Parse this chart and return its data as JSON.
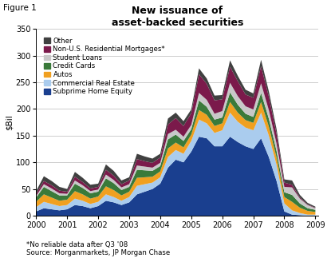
{
  "title": "New issuance of\nasset-backed securities",
  "figure_label": "Figure 1",
  "ylabel": "$Bil",
  "footnote": "*No reliable data after Q3 '08\nSource: Morganmarkets, JP Morgan Chase",
  "ylim": [
    0,
    350
  ],
  "yticks": [
    0,
    50,
    100,
    150,
    200,
    250,
    300,
    350
  ],
  "years": [
    2000.0,
    2000.25,
    2000.5,
    2000.75,
    2001.0,
    2001.25,
    2001.5,
    2001.75,
    2002.0,
    2002.25,
    2002.5,
    2002.75,
    2003.0,
    2003.25,
    2003.5,
    2003.75,
    2004.0,
    2004.25,
    2004.5,
    2004.75,
    2005.0,
    2005.25,
    2005.5,
    2005.75,
    2006.0,
    2006.25,
    2006.5,
    2006.75,
    2007.0,
    2007.25,
    2007.5,
    2007.75,
    2008.0,
    2008.25,
    2008.5,
    2008.75,
    2009.0
  ],
  "series": {
    "Subprime Home Equity": {
      "color": "#1a3f8f",
      "values": [
        8,
        14,
        12,
        10,
        12,
        20,
        18,
        14,
        18,
        28,
        25,
        20,
        25,
        40,
        45,
        50,
        60,
        90,
        105,
        100,
        120,
        148,
        145,
        130,
        130,
        148,
        138,
        130,
        125,
        145,
        110,
        65,
        8,
        2,
        1,
        0,
        0
      ]
    },
    "Commercial Real Estate": {
      "color": "#aaccee",
      "values": [
        8,
        12,
        10,
        8,
        8,
        12,
        10,
        8,
        8,
        12,
        10,
        8,
        10,
        16,
        14,
        12,
        12,
        20,
        18,
        16,
        20,
        32,
        28,
        25,
        30,
        45,
        38,
        35,
        35,
        48,
        40,
        30,
        15,
        8,
        4,
        2,
        2
      ]
    },
    "Autos": {
      "color": "#f0a020",
      "values": [
        10,
        14,
        12,
        10,
        10,
        14,
        12,
        10,
        10,
        15,
        13,
        10,
        10,
        15,
        13,
        11,
        11,
        16,
        14,
        12,
        12,
        18,
        16,
        13,
        13,
        20,
        17,
        14,
        14,
        20,
        17,
        14,
        12,
        16,
        10,
        7,
        5
      ]
    },
    "Credit Cards": {
      "color": "#3a7a3a",
      "values": [
        8,
        14,
        12,
        10,
        8,
        14,
        12,
        10,
        9,
        15,
        13,
        10,
        9,
        15,
        13,
        11,
        10,
        17,
        15,
        12,
        10,
        18,
        15,
        12,
        11,
        18,
        15,
        12,
        11,
        17,
        15,
        12,
        9,
        13,
        8,
        5,
        4
      ]
    },
    "Student Loans": {
      "color": "#c8c8c8",
      "values": [
        3,
        5,
        5,
        4,
        3,
        6,
        5,
        4,
        4,
        7,
        6,
        5,
        5,
        8,
        7,
        6,
        6,
        10,
        9,
        8,
        8,
        14,
        13,
        11,
        12,
        18,
        16,
        14,
        14,
        18,
        16,
        14,
        10,
        14,
        9,
        6,
        3
      ]
    },
    "Non-U.S. Residential Mortgages*": {
      "color": "#7b1a4b",
      "values": [
        4,
        6,
        6,
        5,
        4,
        7,
        6,
        5,
        5,
        9,
        8,
        6,
        7,
        12,
        10,
        9,
        10,
        18,
        22,
        20,
        22,
        35,
        30,
        25,
        22,
        30,
        28,
        22,
        22,
        32,
        25,
        18,
        8,
        5,
        2,
        1,
        1
      ]
    },
    "Other": {
      "color": "#404040",
      "values": [
        5,
        9,
        8,
        7,
        5,
        9,
        8,
        7,
        6,
        10,
        9,
        7,
        6,
        10,
        9,
        8,
        7,
        11,
        10,
        9,
        7,
        11,
        10,
        9,
        8,
        12,
        10,
        9,
        8,
        12,
        10,
        9,
        6,
        8,
        5,
        3,
        2
      ]
    }
  },
  "legend_order": [
    "Other",
    "Non-U.S. Residential Mortgages*",
    "Student Loans",
    "Credit Cards",
    "Autos",
    "Commercial Real Estate",
    "Subprime Home Equity"
  ],
  "stack_order": [
    "Subprime Home Equity",
    "Commercial Real Estate",
    "Autos",
    "Credit Cards",
    "Student Loans",
    "Non-U.S. Residential Mortgages*",
    "Other"
  ],
  "xtick_labels": [
    "2000",
    "2001",
    "2002",
    "2003",
    "2004",
    "2005",
    "2006",
    "2007",
    "2008",
    "2009"
  ],
  "xtick_positions": [
    2000,
    2001,
    2002,
    2003,
    2004,
    2005,
    2006,
    2007,
    2008,
    2009
  ],
  "background_color": "#ffffff"
}
